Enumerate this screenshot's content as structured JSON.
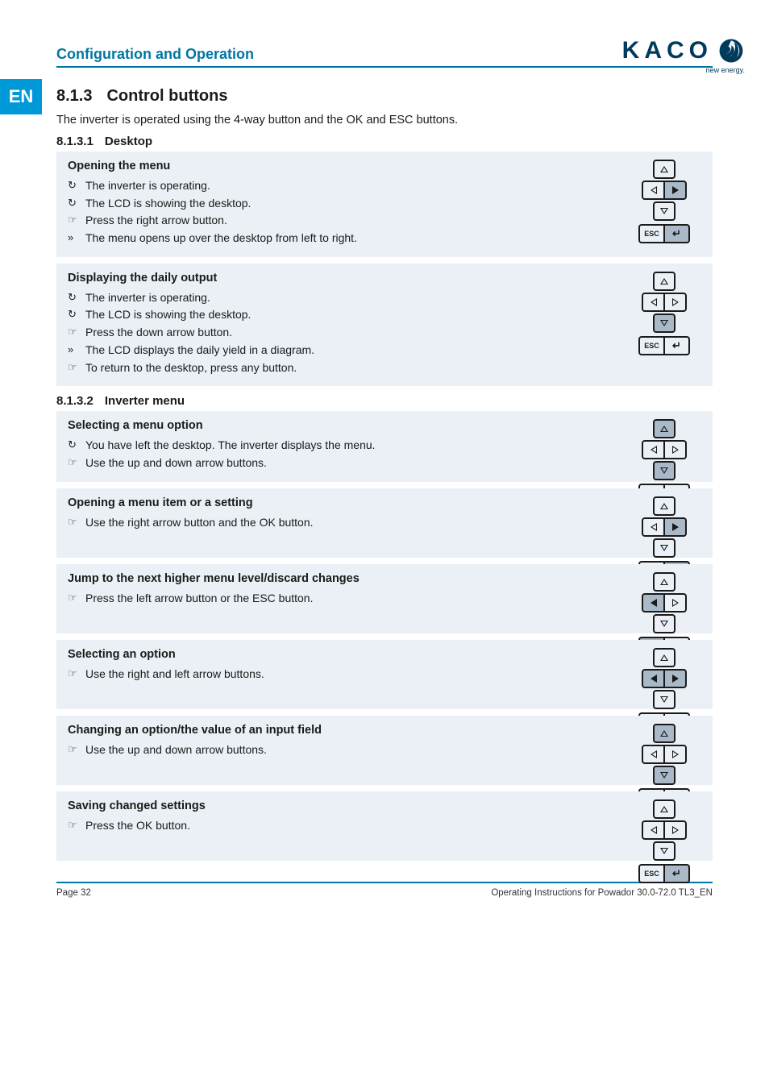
{
  "tab": {
    "lang": "EN"
  },
  "header": {
    "section": "Configuration and Operation",
    "brand": "KACO",
    "tagline": "new energy."
  },
  "section": {
    "number": "8.1.3",
    "title": "Control buttons",
    "intro": "The inverter is operated using the 4-way button and the OK and ESC buttons."
  },
  "sub1": {
    "number": "8.1.3.1",
    "title": "Desktop"
  },
  "sub2": {
    "number": "8.1.3.2",
    "title": "Inverter menu"
  },
  "footer": {
    "page": "Page 32",
    "doc": "Operating Instructions for Powador 30.0-72.0 TL3_EN"
  },
  "colors": {
    "panel_bg": "#eaf0f5",
    "selected_bg": "#a9b9c7",
    "rule": "#0076a3",
    "tab": "#0099d8",
    "text": "#1a1a1a"
  },
  "markers": {
    "circ": "↻",
    "hand": "☞",
    "res": "»"
  },
  "blocks": [
    {
      "title": "Opening the menu",
      "items": [
        {
          "mk": "circ",
          "text": "The inverter is operating."
        },
        {
          "mk": "circ",
          "text": "The LCD is showing the desktop."
        },
        {
          "mk": "hand",
          "text": "Press the right arrow button."
        },
        {
          "mk": "res",
          "text": "The menu opens up over the desktop from left to right."
        }
      ],
      "pad": {
        "up": "o",
        "down": "o",
        "left": "o",
        "right": "f_sel",
        "esc": "n",
        "ok": "sel"
      }
    },
    {
      "title": "Displaying the daily output",
      "items": [
        {
          "mk": "circ",
          "text": "The inverter is operating."
        },
        {
          "mk": "circ",
          "text": "The LCD is showing the desktop."
        },
        {
          "mk": "hand",
          "text": "Press the down arrow button."
        },
        {
          "mk": "res",
          "text": "The LCD displays the daily yield in a diagram."
        },
        {
          "mk": "hand",
          "text": "To return to the desktop, press any button."
        }
      ],
      "pad": {
        "up": "o",
        "down": "o_sel",
        "left": "o",
        "right": "o",
        "esc": "n",
        "ok": "n"
      }
    },
    {
      "subhead": true
    },
    {
      "title": "Selecting a menu option",
      "items": [
        {
          "mk": "circ",
          "text": "You have left the desktop. The inverter displays the menu."
        },
        {
          "mk": "hand",
          "text": "Use the up and down arrow buttons."
        }
      ],
      "pad": {
        "up": "o_sel",
        "down": "o_sel",
        "left": "o",
        "right": "o",
        "esc": "n",
        "ok": "n"
      }
    },
    {
      "title": "Opening a menu item or a setting",
      "items": [
        {
          "mk": "hand",
          "text": "Use the right arrow button and the OK button."
        }
      ],
      "pad": {
        "up": "o",
        "down": "o",
        "left": "o",
        "right": "f_sel",
        "esc": "n",
        "ok": "sel"
      }
    },
    {
      "title": "Jump to the next higher menu level/discard changes",
      "items": [
        {
          "mk": "hand",
          "text": "Press the left arrow button or the ESC button."
        }
      ],
      "pad": {
        "up": "o",
        "down": "o",
        "left": "f_sel",
        "right": "o",
        "esc": "sel",
        "ok": "n"
      }
    },
    {
      "title": "Selecting an option",
      "items": [
        {
          "mk": "hand",
          "text": "Use the right and left arrow buttons."
        }
      ],
      "pad": {
        "up": "o",
        "down": "o",
        "left": "f_sel",
        "right": "f_sel",
        "esc": "n",
        "ok": "n"
      }
    },
    {
      "title": "Changing an option/the value of an input field",
      "items": [
        {
          "mk": "hand",
          "text": "Use the up and down arrow buttons."
        }
      ],
      "pad": {
        "up": "o_sel",
        "down": "o_sel",
        "left": "o",
        "right": "o",
        "esc": "n",
        "ok": "n"
      }
    },
    {
      "title": "Saving changed settings",
      "items": [
        {
          "mk": "hand",
          "text": "Press the OK button."
        }
      ],
      "pad": {
        "up": "o",
        "down": "o",
        "left": "o",
        "right": "o",
        "esc": "n",
        "ok": "sel"
      }
    }
  ]
}
